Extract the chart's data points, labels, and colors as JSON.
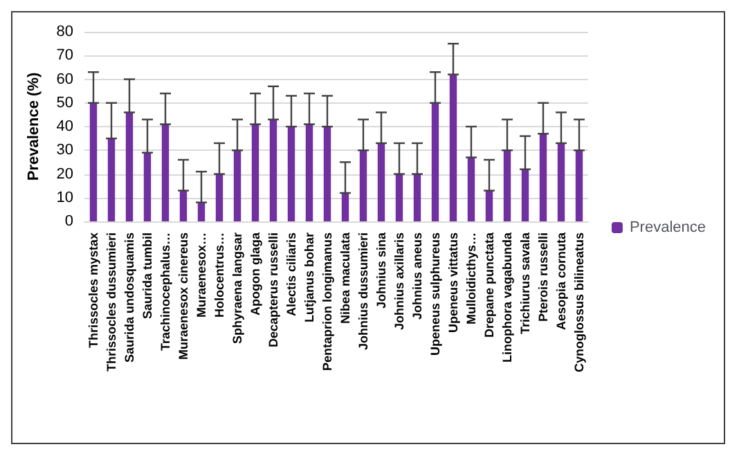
{
  "chart_data": {
    "type": "bar",
    "ylabel": "Prevalence (%)",
    "categories": [
      "Thrissocles mystax",
      "Thrissocles dussumieri",
      "Saurida undosquamis",
      "Saurida tumbil",
      "Trachinocephalus…",
      "Muraenesox cinereus",
      "Muraenesox…",
      "Holocentrus…",
      "Sphyraena langsar",
      "Apogon glaga",
      "Decapterus russelli",
      "Alectis ciliaris",
      "Lutjanus bohar",
      "Pentaprion longimanus",
      "Nibea maculata",
      "Johnius dussumieri",
      "Johnius sina",
      "Johnius axillaris",
      "Johnius aneus",
      "Upeneus sulphureus",
      "Upeneus vittatus",
      "Mulloidicthys…",
      "Drepane punctata",
      "Linophora vagabunda",
      "Trichiurus savala",
      "Pterois russelli",
      "Aesopia cornuta",
      "Cynoglossus bilineatus"
    ],
    "series": [
      {
        "name": "Prevalence",
        "color": "#7030a0",
        "values": [
          50,
          35,
          46,
          29,
          41,
          13,
          8,
          20,
          30,
          41,
          43,
          40,
          41,
          40,
          12,
          30,
          33,
          20,
          20,
          50,
          62,
          27,
          13,
          30,
          22,
          37,
          33,
          30
        ],
        "errors": [
          [
            50,
            63
          ],
          [
            35,
            50
          ],
          [
            46,
            60
          ],
          [
            29,
            43
          ],
          [
            41,
            54
          ],
          [
            13,
            26
          ],
          [
            8,
            21
          ],
          [
            20,
            33
          ],
          [
            30,
            43
          ],
          [
            41,
            54
          ],
          [
            43,
            57
          ],
          [
            40,
            53
          ],
          [
            41,
            54
          ],
          [
            40,
            53
          ],
          [
            12,
            25
          ],
          [
            30,
            43
          ],
          [
            33,
            46
          ],
          [
            20,
            33
          ],
          [
            20,
            33
          ],
          [
            50,
            63
          ],
          [
            62,
            75
          ],
          [
            27,
            40
          ],
          [
            13,
            26
          ],
          [
            30,
            43
          ],
          [
            22,
            36
          ],
          [
            37,
            50
          ],
          [
            33,
            46
          ],
          [
            30,
            43
          ]
        ]
      }
    ],
    "ylim": [
      0,
      80
    ],
    "yticks": [
      0,
      10,
      20,
      30,
      40,
      50,
      60,
      70,
      80
    ],
    "grid": "y",
    "legend": "right"
  }
}
